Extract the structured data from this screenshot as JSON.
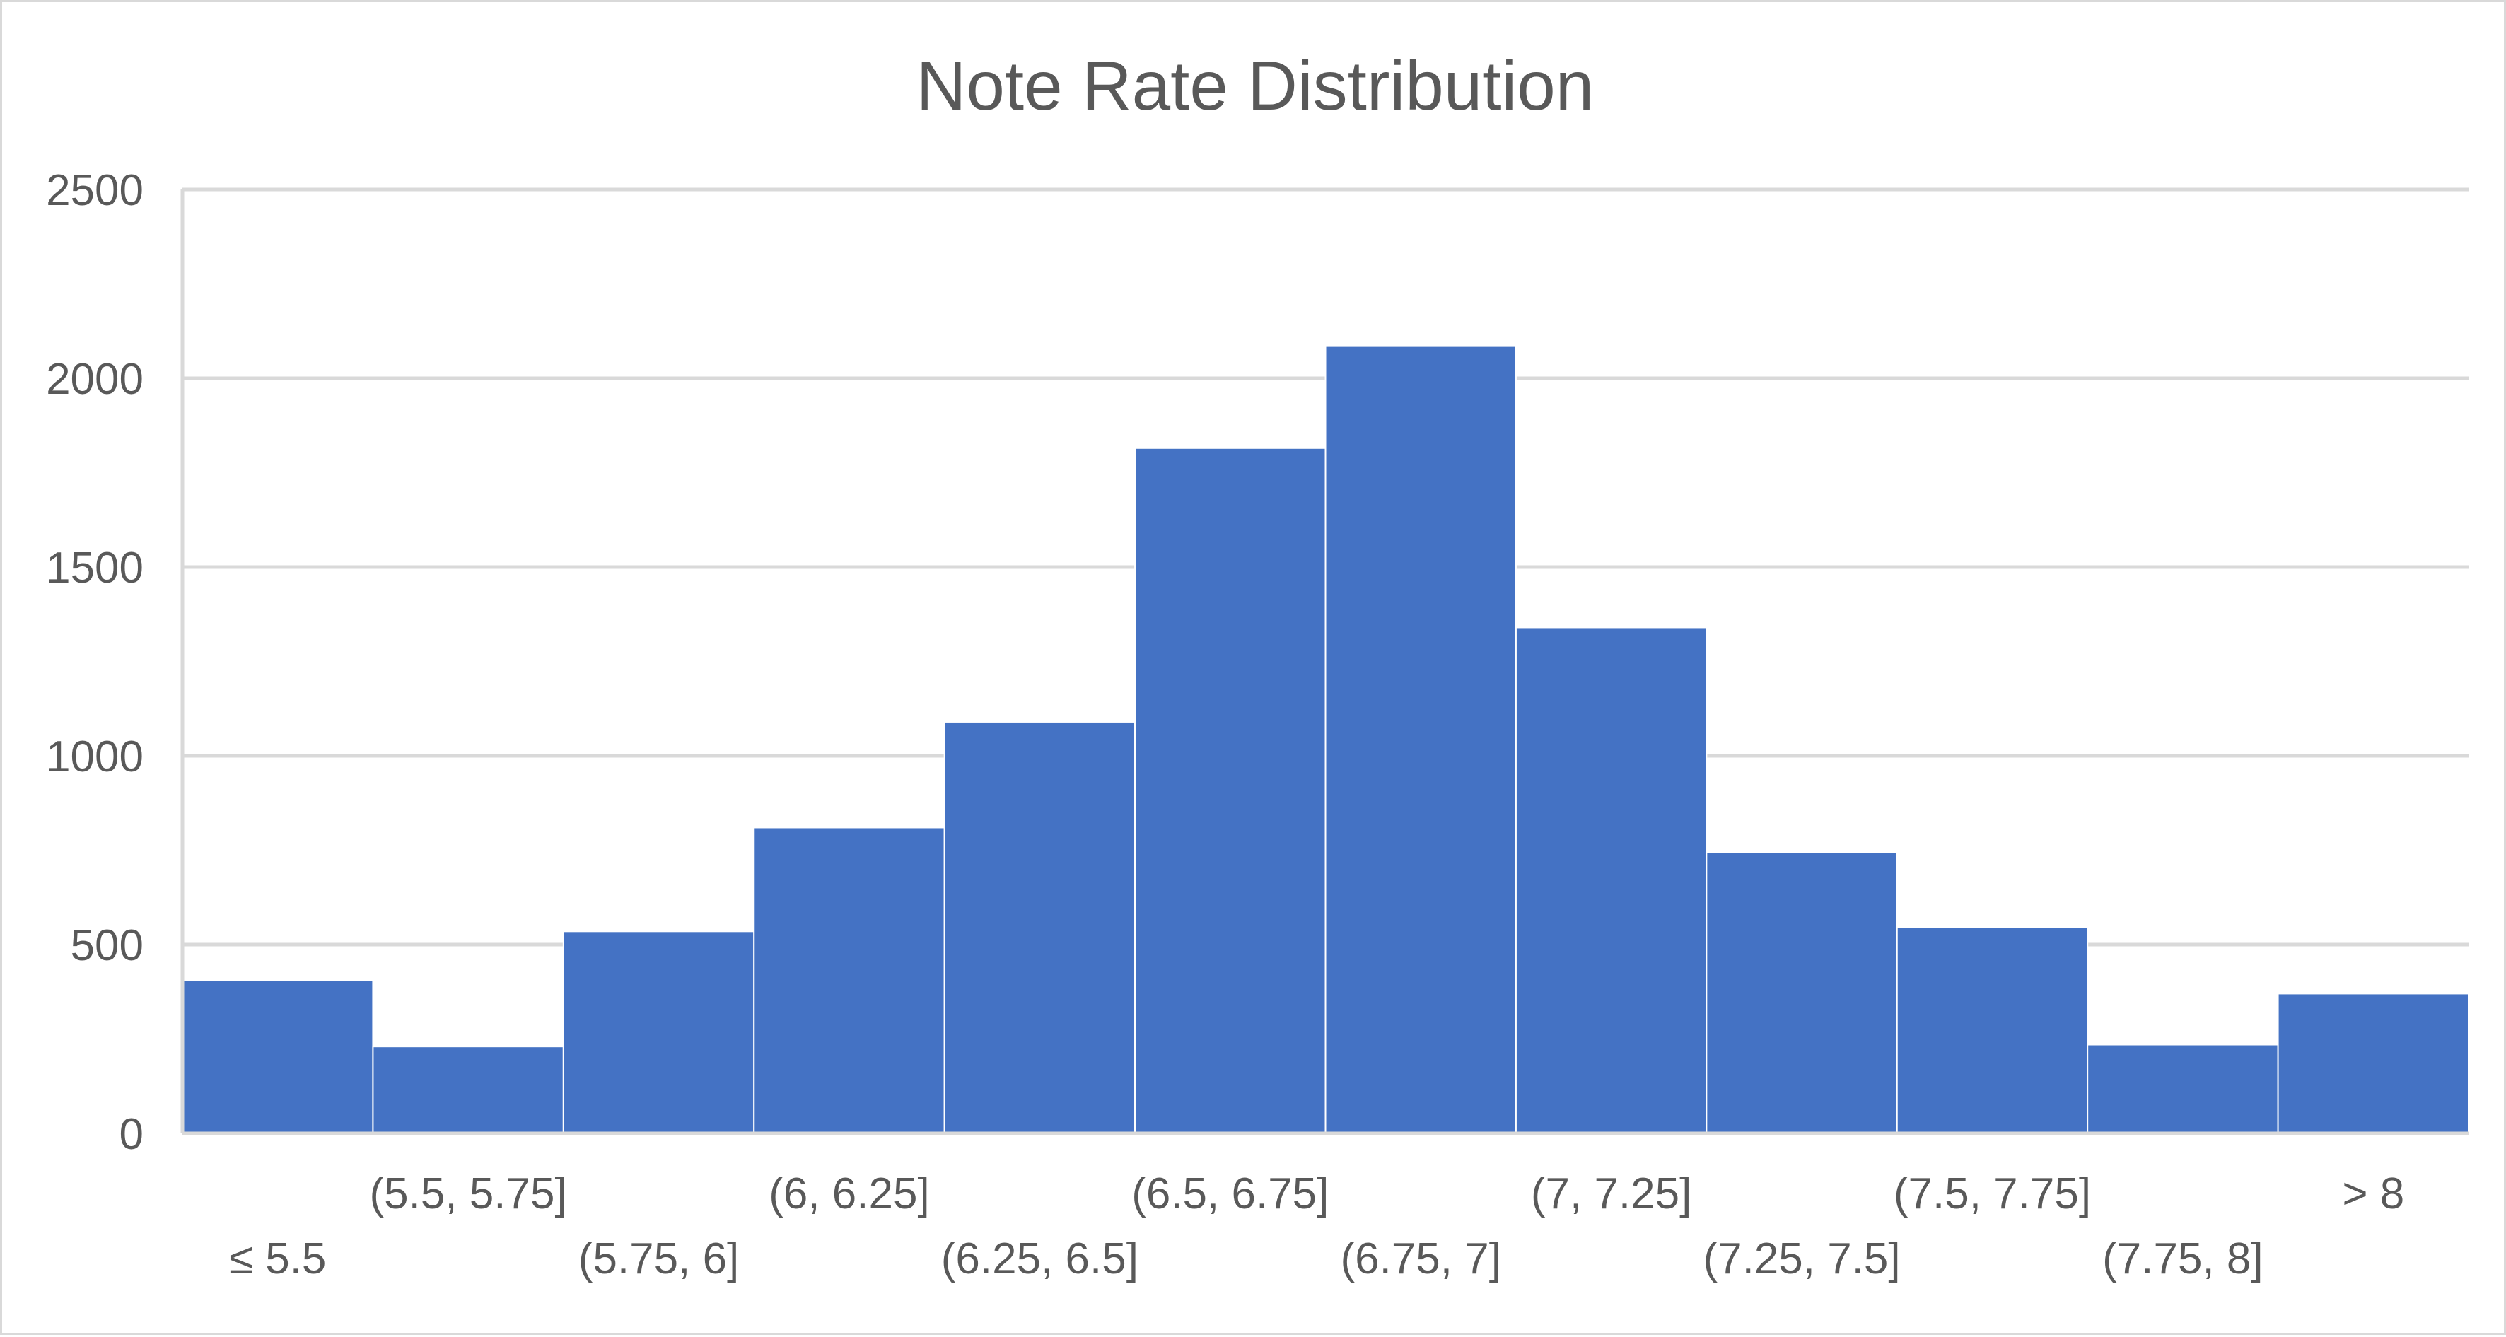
{
  "chart_data": {
    "type": "bar",
    "title": "Note Rate Distribution",
    "xlabel": "",
    "ylabel": "",
    "categories": [
      "≤ 5.5",
      "(5.5, 5.75]",
      "(5.75, 6]",
      "(6, 6.25]",
      "(6.25, 6.5]",
      "(6.5, 6.75]",
      "(6.75, 7]",
      "(7, 7.25]",
      "(7.25, 7.5]",
      "(7.5, 7.75]",
      "(7.75, 8]",
      "> 8"
    ],
    "series": [
      {
        "values": [
          405,
          230,
          535,
          810,
          1090,
          1815,
          2085,
          1340,
          745,
          545,
          235,
          370
        ]
      }
    ],
    "ylim": [
      0,
      2500
    ],
    "yticks": [
      0,
      500,
      1000,
      1500,
      2000,
      2500
    ],
    "ytick_labels": [
      "0",
      "500",
      "1000",
      "1500",
      "2000",
      "2500"
    ],
    "grid": true,
    "legend": "none",
    "bar_gap": "none",
    "colors": {
      "bar": "#4472C4",
      "gridline": "#D9D9D9",
      "text": "#595959"
    }
  }
}
